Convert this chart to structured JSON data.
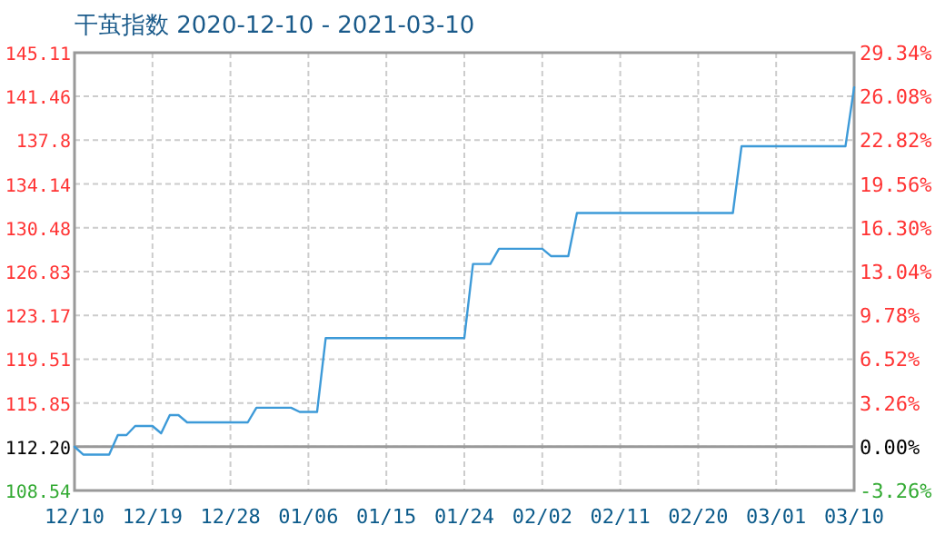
{
  "chart_data": {
    "type": "line",
    "title": "干茧指数 2020-12-10 - 2021-03-10",
    "x": [
      "2020-12-10",
      "2020-12-11",
      "2020-12-14",
      "2020-12-15",
      "2020-12-16",
      "2020-12-17",
      "2020-12-19",
      "2020-12-20",
      "2020-12-21",
      "2020-12-22",
      "2020-12-23",
      "2020-12-30",
      "2020-12-31",
      "2021-01-04",
      "2021-01-05",
      "2021-01-07",
      "2021-01-08",
      "2021-01-24",
      "2021-01-25",
      "2021-01-27",
      "2021-01-28",
      "2021-02-02",
      "2021-02-03",
      "2021-02-05",
      "2021-02-06",
      "2021-02-24",
      "2021-02-25",
      "2021-03-09",
      "2021-03-10"
    ],
    "series": [
      {
        "color": "#3d9ad8",
        "values": [
          112.2,
          111.54,
          111.54,
          113.17,
          113.17,
          113.93,
          113.93,
          113.32,
          114.84,
          114.84,
          114.23,
          114.23,
          115.45,
          115.45,
          115.1,
          115.1,
          121.27,
          121.27,
          127.46,
          127.46,
          128.73,
          128.73,
          128.12,
          128.12,
          131.72,
          131.72,
          137.29,
          137.29,
          142.22
        ]
      }
    ],
    "xlim": [
      "2020-12-10",
      "2021-03-10"
    ],
    "xticks": [
      {
        "value": "2020-12-10",
        "label": "12/10"
      },
      {
        "value": "2020-12-19",
        "label": "12/19"
      },
      {
        "value": "2020-12-28",
        "label": "12/28"
      },
      {
        "value": "2021-01-06",
        "label": "01/06"
      },
      {
        "value": "2021-01-15",
        "label": "01/15"
      },
      {
        "value": "2021-01-24",
        "label": "01/24"
      },
      {
        "value": "2021-02-02",
        "label": "02/02"
      },
      {
        "value": "2021-02-11",
        "label": "02/11"
      },
      {
        "value": "2021-02-20",
        "label": "02/20"
      },
      {
        "value": "2021-03-01",
        "label": "03/01"
      },
      {
        "value": "2021-03-10",
        "label": "03/10"
      }
    ],
    "ylim": [
      108.54,
      145.11
    ],
    "yticks": [
      108.54,
      {
        "value": 112.2,
        "label": "112.20"
      },
      115.85,
      119.51,
      123.17,
      126.83,
      130.48,
      134.14,
      137.8,
      141.46,
      145.11
    ],
    "y2lim": [
      -3.26,
      29.34
    ],
    "y2ticks": [
      {
        "value": -3.26,
        "label": "-3.26%"
      },
      {
        "value": 0,
        "label": "0.00%"
      },
      {
        "value": 3.26,
        "label": "3.26%"
      },
      {
        "value": 6.52,
        "label": "6.52%"
      },
      {
        "value": 9.78,
        "label": "9.78%"
      },
      {
        "value": 13.04,
        "label": "13.04%"
      },
      {
        "value": 16.3,
        "label": "16.30%"
      },
      {
        "value": 19.56,
        "label": "19.56%"
      },
      {
        "value": 22.82,
        "label": "22.82%"
      },
      {
        "value": 26.08,
        "label": "26.08%"
      },
      {
        "value": 29.34,
        "label": "29.34%"
      }
    ],
    "grid": true,
    "ref_lines": [
      {
        "axis": "y",
        "value": 112.2,
        "color": "#999999"
      }
    ]
  }
}
